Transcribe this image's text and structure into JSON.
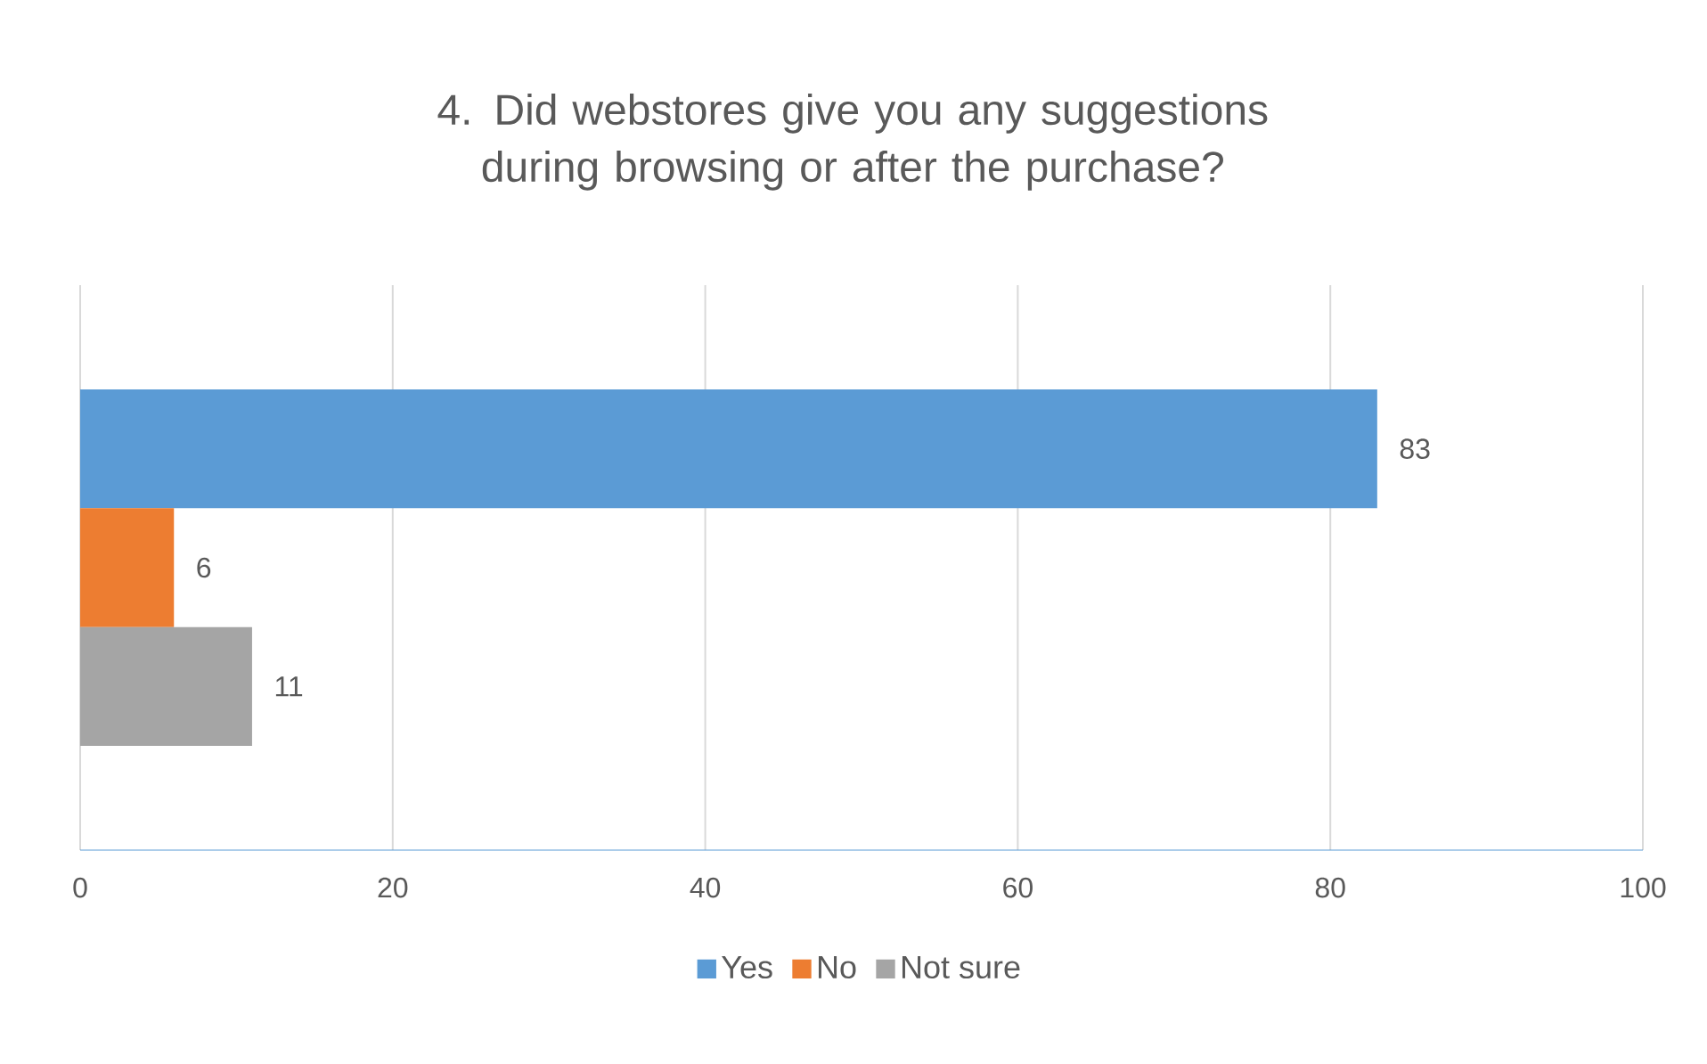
{
  "chart_data": {
    "type": "bar",
    "orientation": "horizontal",
    "title": "4. Did webstores give you any suggestions during browsing or after the purchase?",
    "categories": [
      null
    ],
    "series": [
      {
        "name": "Yes",
        "color": "#5b9bd5",
        "values": [
          83
        ]
      },
      {
        "name": "No",
        "color": "#ed7d31",
        "values": [
          6
        ]
      },
      {
        "name": "Not sure",
        "color": "#a5a5a5",
        "values": [
          11
        ]
      }
    ],
    "xlim": [
      0,
      100
    ],
    "xticks": [
      0,
      20,
      40,
      60,
      80,
      100
    ],
    "grid": "x",
    "legend": "bottom",
    "data_labels": true
  }
}
